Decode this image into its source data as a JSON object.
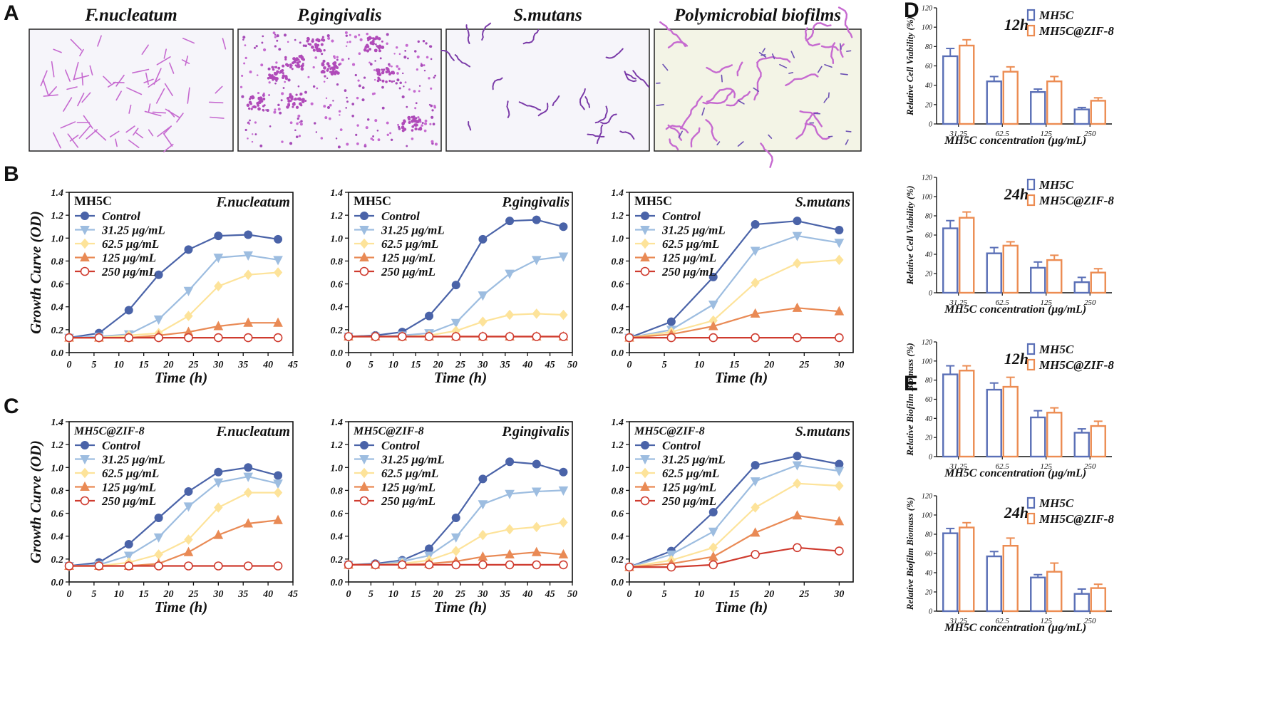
{
  "panel_letters": [
    "A",
    "B",
    "C",
    "D",
    "E"
  ],
  "micrographs": [
    {
      "title": "F.nucleatum",
      "style": "rods"
    },
    {
      "title": "P.gingivalis",
      "style": "dots"
    },
    {
      "title": "S.mutans",
      "style": "chains"
    },
    {
      "title": "Polymicrobial biofilms",
      "style": "mixed"
    }
  ],
  "colors": {
    "control": "#4a63a8",
    "c3125": "#9dbde0",
    "c625": "#fde39a",
    "c125": "#e98a55",
    "c250": "#cf3b2f",
    "bar_mh5c": "#5a6fb6",
    "bar_zif": "#ec8c52",
    "stain_pink": "#c66ad0",
    "stain_purple": "#7a3aa8"
  },
  "chart_data": [
    {
      "id": "B1",
      "type": "line",
      "label": "MH5C",
      "label_style": "bold",
      "organism": "F.nucleatum",
      "xlabel": "Time (h)",
      "ylabel": "Growth Curve (OD)",
      "xlim": [
        0,
        45
      ],
      "xticks": [
        0,
        5,
        10,
        15,
        20,
        25,
        30,
        35,
        40,
        45
      ],
      "ylim": [
        0,
        1.4
      ],
      "yticks": [
        "0.0",
        "0.2",
        "0.4",
        "0.6",
        "0.8",
        "1.0",
        "1.2",
        "1.4"
      ],
      "x": [
        0,
        6,
        12,
        18,
        24,
        30,
        36,
        42
      ],
      "series": [
        {
          "name": "Control",
          "marker": "circle",
          "color": "#4a63a8",
          "values": [
            0.13,
            0.17,
            0.37,
            0.68,
            0.9,
            1.02,
            1.03,
            0.99
          ]
        },
        {
          "name": "31.25 μg/mL",
          "marker": "tri-down",
          "color": "#9dbde0",
          "values": [
            0.13,
            0.14,
            0.16,
            0.29,
            0.54,
            0.83,
            0.85,
            0.81
          ]
        },
        {
          "name": "62.5 μg/mL",
          "marker": "diamond",
          "color": "#fde39a",
          "values": [
            0.13,
            0.13,
            0.15,
            0.17,
            0.32,
            0.58,
            0.68,
            0.7
          ]
        },
        {
          "name": "125 μg/mL",
          "marker": "tri-up",
          "color": "#e98a55",
          "values": [
            0.13,
            0.13,
            0.13,
            0.15,
            0.18,
            0.23,
            0.26,
            0.26
          ]
        },
        {
          "name": "250 μg/mL",
          "marker": "open-circle",
          "color": "#cf3b2f",
          "values": [
            0.13,
            0.13,
            0.13,
            0.13,
            0.13,
            0.13,
            0.13,
            0.13
          ]
        }
      ]
    },
    {
      "id": "B2",
      "type": "line",
      "label": "MH5C",
      "label_style": "bold",
      "organism": "P.gingivalis",
      "xlabel": "Time (h)",
      "ylabel": "",
      "xlim": [
        0,
        50
      ],
      "xticks": [
        0,
        5,
        10,
        15,
        20,
        25,
        30,
        35,
        40,
        45,
        50
      ],
      "ylim": [
        0,
        1.4
      ],
      "yticks": [
        "0.0",
        "0.2",
        "0.4",
        "0.6",
        "0.8",
        "1.0",
        "1.2",
        "1.4"
      ],
      "x": [
        0,
        6,
        12,
        18,
        24,
        30,
        36,
        42,
        48
      ],
      "series": [
        {
          "name": "Control",
          "marker": "circle",
          "color": "#4a63a8",
          "values": [
            0.14,
            0.15,
            0.18,
            0.32,
            0.59,
            0.99,
            1.15,
            1.16,
            1.1
          ]
        },
        {
          "name": "31.25 μg/mL",
          "marker": "tri-down",
          "color": "#9dbde0",
          "values": [
            0.14,
            0.14,
            0.15,
            0.17,
            0.26,
            0.5,
            0.69,
            0.81,
            0.84
          ]
        },
        {
          "name": "62.5 μg/mL",
          "marker": "diamond",
          "color": "#fde39a",
          "values": [
            0.14,
            0.14,
            0.14,
            0.15,
            0.19,
            0.27,
            0.33,
            0.34,
            0.33
          ]
        },
        {
          "name": "125 μg/mL",
          "marker": "tri-up",
          "color": "#e98a55",
          "values": [
            0.14,
            0.14,
            0.14,
            0.14,
            0.14,
            0.14,
            0.14,
            0.14,
            0.14
          ]
        },
        {
          "name": "250 μg/mL",
          "marker": "open-circle",
          "color": "#cf3b2f",
          "values": [
            0.14,
            0.14,
            0.14,
            0.14,
            0.14,
            0.14,
            0.14,
            0.14,
            0.14
          ]
        }
      ]
    },
    {
      "id": "B3",
      "type": "line",
      "label": "MH5C",
      "label_style": "bold",
      "organism": "S.mutans",
      "xlabel": "Time (h)",
      "ylabel": "",
      "xlim": [
        0,
        32
      ],
      "xticks": [
        0,
        5,
        10,
        15,
        20,
        25,
        30
      ],
      "ylim": [
        0,
        1.4
      ],
      "yticks": [
        "0.0",
        "0.2",
        "0.4",
        "0.6",
        "0.8",
        "1.0",
        "1.2",
        "1.4"
      ],
      "x": [
        0,
        6,
        12,
        18,
        24,
        30
      ],
      "series": [
        {
          "name": "Control",
          "marker": "circle",
          "color": "#4a63a8",
          "values": [
            0.13,
            0.27,
            0.66,
            1.12,
            1.15,
            1.07
          ]
        },
        {
          "name": "31.25 μg/mL",
          "marker": "tri-down",
          "color": "#9dbde0",
          "values": [
            0.13,
            0.2,
            0.42,
            0.89,
            1.02,
            0.96
          ]
        },
        {
          "name": "62.5 μg/mL",
          "marker": "diamond",
          "color": "#fde39a",
          "values": [
            0.13,
            0.18,
            0.28,
            0.61,
            0.78,
            0.81
          ]
        },
        {
          "name": "125 μg/mL",
          "marker": "tri-up",
          "color": "#e98a55",
          "values": [
            0.13,
            0.16,
            0.23,
            0.34,
            0.39,
            0.36
          ]
        },
        {
          "name": "250 μg/mL",
          "marker": "open-circle",
          "color": "#cf3b2f",
          "values": [
            0.13,
            0.13,
            0.13,
            0.13,
            0.13,
            0.13
          ]
        }
      ]
    },
    {
      "id": "C1",
      "type": "line",
      "label": "MH5C@ZIF-8",
      "label_style": "bold-italic",
      "organism": "F.nucleatum",
      "xlabel": "Time (h)",
      "ylabel": "Growth Curve (OD)",
      "xlim": [
        0,
        45
      ],
      "xticks": [
        0,
        5,
        10,
        15,
        20,
        25,
        30,
        35,
        40,
        45
      ],
      "ylim": [
        0,
        1.4
      ],
      "yticks": [
        "0.0",
        "0.2",
        "0.4",
        "0.6",
        "0.8",
        "1.0",
        "1.2",
        "1.4"
      ],
      "x": [
        0,
        6,
        12,
        18,
        24,
        30,
        36,
        42
      ],
      "series": [
        {
          "name": "Control",
          "marker": "circle",
          "color": "#4a63a8",
          "values": [
            0.14,
            0.17,
            0.33,
            0.56,
            0.79,
            0.96,
            1.0,
            0.93
          ]
        },
        {
          "name": "31.25 μg/mL",
          "marker": "tri-down",
          "color": "#9dbde0",
          "values": [
            0.14,
            0.15,
            0.23,
            0.39,
            0.66,
            0.87,
            0.92,
            0.86
          ]
        },
        {
          "name": "62.5 μg/mL",
          "marker": "diamond",
          "color": "#fde39a",
          "values": [
            0.14,
            0.14,
            0.17,
            0.24,
            0.37,
            0.65,
            0.78,
            0.78
          ]
        },
        {
          "name": "125 μg/mL",
          "marker": "tri-up",
          "color": "#e98a55",
          "values": [
            0.14,
            0.14,
            0.14,
            0.16,
            0.26,
            0.41,
            0.51,
            0.54
          ]
        },
        {
          "name": "250 μg/mL",
          "marker": "open-circle",
          "color": "#cf3b2f",
          "values": [
            0.14,
            0.14,
            0.14,
            0.14,
            0.14,
            0.14,
            0.14,
            0.14
          ]
        }
      ]
    },
    {
      "id": "C2",
      "type": "line",
      "label": "MH5C@ZIF-8",
      "label_style": "bold-italic",
      "organism": "P.gingivalis",
      "xlabel": "Time (h)",
      "ylabel": "",
      "xlim": [
        0,
        50
      ],
      "xticks": [
        0,
        5,
        10,
        15,
        20,
        25,
        30,
        35,
        40,
        45,
        50
      ],
      "ylim": [
        0,
        1.4
      ],
      "yticks": [
        "0.0",
        "0.2",
        "0.4",
        "0.6",
        "0.8",
        "1.0",
        "1.2",
        "1.4"
      ],
      "x": [
        0,
        6,
        12,
        18,
        24,
        30,
        36,
        42,
        48
      ],
      "series": [
        {
          "name": "Control",
          "marker": "circle",
          "color": "#4a63a8",
          "values": [
            0.15,
            0.16,
            0.19,
            0.29,
            0.56,
            0.9,
            1.05,
            1.03,
            0.96
          ]
        },
        {
          "name": "31.25 μg/mL",
          "marker": "tri-down",
          "color": "#9dbde0",
          "values": [
            0.15,
            0.15,
            0.18,
            0.23,
            0.39,
            0.68,
            0.77,
            0.79,
            0.8
          ]
        },
        {
          "name": "62.5 μg/mL",
          "marker": "diamond",
          "color": "#fde39a",
          "values": [
            0.15,
            0.15,
            0.16,
            0.19,
            0.27,
            0.41,
            0.46,
            0.48,
            0.52
          ]
        },
        {
          "name": "125 μg/mL",
          "marker": "tri-up",
          "color": "#e98a55",
          "values": [
            0.15,
            0.15,
            0.15,
            0.16,
            0.18,
            0.22,
            0.24,
            0.26,
            0.24
          ]
        },
        {
          "name": "250 μg/mL",
          "marker": "open-circle",
          "color": "#cf3b2f",
          "values": [
            0.15,
            0.15,
            0.15,
            0.15,
            0.15,
            0.15,
            0.15,
            0.15,
            0.15
          ]
        }
      ]
    },
    {
      "id": "C3",
      "type": "line",
      "label": "MH5C@ZIF-8",
      "label_style": "bold-italic",
      "organism": "S.mutans",
      "xlabel": "Time (h)",
      "ylabel": "",
      "xlim": [
        0,
        32
      ],
      "xticks": [
        0,
        5,
        10,
        15,
        20,
        25,
        30
      ],
      "ylim": [
        0,
        1.4
      ],
      "yticks": [
        "0.0",
        "0.2",
        "0.4",
        "0.6",
        "0.8",
        "1.0",
        "1.2",
        "1.4"
      ],
      "x": [
        0,
        6,
        12,
        18,
        24,
        30
      ],
      "series": [
        {
          "name": "Control",
          "marker": "circle",
          "color": "#4a63a8",
          "values": [
            0.13,
            0.27,
            0.61,
            1.02,
            1.1,
            1.03
          ]
        },
        {
          "name": "31.25 μg/mL",
          "marker": "tri-down",
          "color": "#9dbde0",
          "values": [
            0.13,
            0.24,
            0.44,
            0.88,
            1.02,
            0.97
          ]
        },
        {
          "name": "62.5 μg/mL",
          "marker": "diamond",
          "color": "#fde39a",
          "values": [
            0.13,
            0.19,
            0.3,
            0.65,
            0.86,
            0.84
          ]
        },
        {
          "name": "125 μg/mL",
          "marker": "tri-up",
          "color": "#e98a55",
          "values": [
            0.13,
            0.16,
            0.22,
            0.43,
            0.58,
            0.53
          ]
        },
        {
          "name": "250 μg/mL",
          "marker": "open-circle",
          "color": "#cf3b2f",
          "values": [
            0.13,
            0.13,
            0.15,
            0.24,
            0.3,
            0.27
          ]
        }
      ]
    },
    {
      "id": "D1",
      "type": "bar",
      "time": "12h",
      "xlabel": "MH5C concentration (μg/mL)",
      "ylabel": "Relative Cell Viability (%)",
      "ylim": [
        0,
        120
      ],
      "yticks": [
        "0",
        "20",
        "40",
        "60",
        "80",
        "100",
        "120"
      ],
      "categories": [
        "31.25",
        "62.5",
        "125",
        "250"
      ],
      "series": [
        {
          "name": "MH5C",
          "color": "#5a6fb6",
          "values": [
            70,
            44,
            33,
            15
          ],
          "errors": [
            8,
            5,
            3,
            2
          ]
        },
        {
          "name": "MH5C@ZIF-8",
          "color": "#ec8c52",
          "values": [
            81,
            54,
            44,
            24
          ],
          "errors": [
            6,
            5,
            5,
            3
          ]
        }
      ]
    },
    {
      "id": "D2",
      "type": "bar",
      "time": "24h",
      "xlabel": "MH5C concentration (μg/mL)",
      "ylabel": "Relative Cell Viability (%)",
      "ylim": [
        0,
        120
      ],
      "yticks": [
        "0",
        "20",
        "40",
        "60",
        "80",
        "100",
        "120"
      ],
      "categories": [
        "31.25",
        "62.5",
        "125",
        "250"
      ],
      "series": [
        {
          "name": "MH5C",
          "color": "#5a6fb6",
          "values": [
            67,
            41,
            26,
            11
          ],
          "errors": [
            8,
            6,
            6,
            5
          ]
        },
        {
          "name": "MH5C@ZIF-8",
          "color": "#ec8c52",
          "values": [
            78,
            49,
            34,
            21
          ],
          "errors": [
            6,
            4,
            5,
            4
          ]
        }
      ]
    },
    {
      "id": "E1",
      "type": "bar",
      "time": "12h",
      "xlabel": "MH5C concentration (μg/mL)",
      "ylabel": "Relative Biofilm Biomass (%)",
      "ylim": [
        0,
        120
      ],
      "yticks": [
        "0",
        "20",
        "40",
        "60",
        "80",
        "100",
        "120"
      ],
      "categories": [
        "31.25",
        "62.5",
        "125",
        "250"
      ],
      "series": [
        {
          "name": "MH5C",
          "color": "#5a6fb6",
          "values": [
            86,
            70,
            41,
            25
          ],
          "errors": [
            9,
            7,
            7,
            4
          ]
        },
        {
          "name": "MH5C@ZIF-8",
          "color": "#ec8c52",
          "values": [
            90,
            73,
            46,
            32
          ],
          "errors": [
            5,
            10,
            5,
            5
          ]
        }
      ]
    },
    {
      "id": "E2",
      "type": "bar",
      "time": "24h",
      "xlabel": "MH5C concentration (μg/mL)",
      "ylabel": "Relative Biofilm Biomass (%)",
      "ylim": [
        0,
        120
      ],
      "yticks": [
        "0",
        "20",
        "40",
        "60",
        "80",
        "100",
        "120"
      ],
      "categories": [
        "31.25",
        "62.5",
        "125",
        "250"
      ],
      "series": [
        {
          "name": "MH5C",
          "color": "#5a6fb6",
          "values": [
            81,
            57,
            35,
            18
          ],
          "errors": [
            5,
            5,
            3,
            5
          ]
        },
        {
          "name": "MH5C@ZIF-8",
          "color": "#ec8c52",
          "values": [
            87,
            68,
            41,
            24
          ],
          "errors": [
            5,
            8,
            9,
            4
          ]
        }
      ]
    }
  ]
}
